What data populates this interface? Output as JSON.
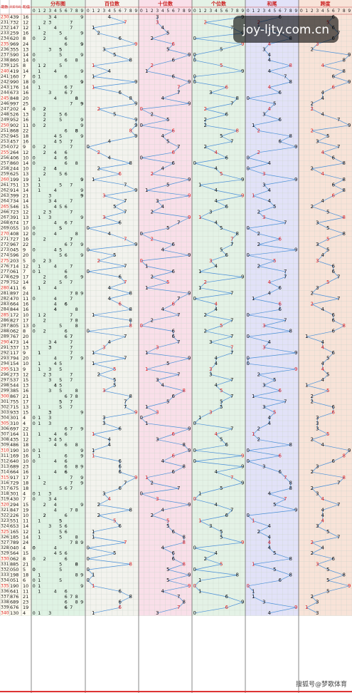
{
  "header": {
    "period": "期数",
    "number": "开奖号码",
    "sum": "和值",
    "sections": [
      "分布图",
      "百位数",
      "十位数",
      "个位数",
      "和尾",
      "跨度"
    ],
    "digits": [
      0,
      1,
      2,
      3,
      4,
      5,
      6,
      7,
      8,
      9
    ]
  },
  "watermark": "joy-ljty.com.cn",
  "footer": "搜狐号@梦歌体育",
  "rows": [
    [
      230,
      "439",
      16,
      4,
      3,
      9,
      6,
      6
    ],
    [
      231,
      "732",
      12,
      7,
      3,
      2,
      2,
      5
    ],
    [
      232,
      "147",
      12,
      1,
      4,
      7,
      2,
      6
    ],
    [
      233,
      "259",
      16,
      2,
      5,
      9,
      6,
      7
    ],
    [
      234,
      "620",
      8,
      6,
      2,
      0,
      8,
      6
    ],
    [
      235,
      "969",
      24,
      9,
      6,
      9,
      4,
      3
    ],
    [
      236,
      "355",
      13,
      3,
      5,
      5,
      3,
      2
    ],
    [
      237,
      "590",
      14,
      5,
      9,
      0,
      4,
      9
    ],
    [
      238,
      "860",
      14,
      8,
      6,
      0,
      4,
      8
    ],
    [
      239,
      "125",
      8,
      1,
      2,
      5,
      8,
      4
    ],
    [
      240,
      "419",
      14,
      4,
      1,
      9,
      4,
      8
    ],
    [
      241,
      "160",
      7,
      1,
      6,
      0,
      7,
      6
    ],
    [
      242,
      "990",
      18,
      9,
      9,
      0,
      8,
      9
    ],
    [
      243,
      "176",
      14,
      1,
      7,
      6,
      4,
      6
    ],
    [
      244,
      "673",
      16,
      6,
      7,
      3,
      6,
      4
    ],
    [
      245,
      "848",
      20,
      8,
      4,
      8,
      0,
      4
    ],
    [
      246,
      "997",
      25,
      9,
      9,
      7,
      5,
      2
    ],
    [
      247,
      "202",
      4,
      2,
      0,
      2,
      4,
      2
    ],
    [
      248,
      "526",
      13,
      5,
      2,
      6,
      3,
      4
    ],
    [
      249,
      "952",
      16,
      9,
      5,
      2,
      6,
      7
    ],
    [
      250,
      "902",
      11,
      9,
      0,
      2,
      1,
      9
    ],
    [
      251,
      "868",
      22,
      8,
      6,
      8,
      2,
      2
    ],
    [
      252,
      "945",
      18,
      9,
      4,
      5,
      8,
      5
    ],
    [
      253,
      "457",
      16,
      4,
      5,
      7,
      6,
      3
    ],
    [
      254,
      "072",
      9,
      0,
      7,
      2,
      9,
      7
    ],
    [
      255,
      "264",
      12,
      2,
      6,
      4,
      2,
      4
    ],
    [
      256,
      "406",
      10,
      4,
      0,
      6,
      0,
      6
    ],
    [
      257,
      "860",
      14,
      8,
      6,
      0,
      4,
      8
    ],
    [
      258,
      "244",
      10,
      2,
      4,
      4,
      0,
      2
    ],
    [
      259,
      "625",
      13,
      6,
      2,
      5,
      3,
      4
    ],
    [
      260,
      "199",
      19,
      1,
      9,
      9,
      9,
      8
    ],
    [
      261,
      "751",
      13,
      7,
      5,
      1,
      3,
      6
    ],
    [
      262,
      "914",
      14,
      9,
      1,
      4,
      4,
      8
    ],
    [
      263,
      "399",
      21,
      3,
      9,
      9,
      1,
      6
    ],
    [
      264,
      "734",
      14,
      7,
      3,
      4,
      4,
      4
    ],
    [
      265,
      "546",
      15,
      5,
      4,
      6,
      5,
      2
    ],
    [
      266,
      "723",
      12,
      7,
      2,
      3,
      2,
      5
    ],
    [
      267,
      "391",
      13,
      3,
      9,
      1,
      3,
      8
    ],
    [
      268,
      "674",
      17,
      6,
      7,
      4,
      7,
      3
    ],
    [
      269,
      "055",
      10,
      0,
      5,
      5,
      0,
      5
    ],
    [
      270,
      "408",
      12,
      4,
      0,
      8,
      2,
      8
    ],
    [
      271,
      "727",
      16,
      7,
      2,
      7,
      6,
      5
    ],
    [
      272,
      "967",
      22,
      9,
      6,
      7,
      2,
      3
    ],
    [
      273,
      "045",
      9,
      0,
      4,
      5,
      9,
      5
    ],
    [
      274,
      "596",
      20,
      5,
      9,
      6,
      0,
      4
    ],
    [
      275,
      "203",
      5,
      2,
      0,
      3,
      5,
      3
    ],
    [
      276,
      "714",
      12,
      7,
      1,
      4,
      2,
      6
    ],
    [
      277,
      "061",
      7,
      0,
      6,
      1,
      7,
      6
    ],
    [
      278,
      "629",
      17,
      6,
      2,
      9,
      7,
      7
    ],
    [
      279,
      "752",
      14,
      7,
      5,
      2,
      4,
      5
    ],
    [
      280,
      "411",
      6,
      4,
      1,
      1,
      6,
      3
    ],
    [
      281,
      "897",
      24,
      8,
      9,
      7,
      4,
      2
    ],
    [
      282,
      "470",
      11,
      4,
      7,
      0,
      1,
      7
    ],
    [
      283,
      "664",
      16,
      6,
      6,
      4,
      6,
      2
    ],
    [
      284,
      "844",
      16,
      8,
      4,
      4,
      6,
      4
    ],
    [
      285,
      "172",
      10,
      1,
      7,
      2,
      0,
      6
    ],
    [
      286,
      "827",
      17,
      8,
      2,
      7,
      7,
      6
    ],
    [
      287,
      "805",
      13,
      8,
      0,
      5,
      3,
      8
    ],
    [
      288,
      "062",
      8,
      0,
      6,
      2,
      8,
      6
    ],
    [
      289,
      "767",
      20,
      7,
      6,
      7,
      0,
      1
    ],
    [
      290,
      "473",
      14,
      4,
      7,
      3,
      4,
      4
    ],
    [
      291,
      "337",
      13,
      3,
      3,
      7,
      3,
      4
    ],
    [
      292,
      "117",
      9,
      1,
      1,
      7,
      9,
      6
    ],
    [
      293,
      "794",
      20,
      7,
      9,
      4,
      0,
      5
    ],
    [
      294,
      "154",
      10,
      1,
      5,
      4,
      0,
      4
    ],
    [
      295,
      "513",
      9,
      5,
      1,
      3,
      9,
      4
    ],
    [
      296,
      "273",
      12,
      2,
      7,
      3,
      2,
      5
    ],
    [
      297,
      "537",
      15,
      5,
      3,
      7,
      5,
      4
    ],
    [
      298,
      "544",
      13,
      5,
      4,
      4,
      3,
      1
    ],
    [
      299,
      "385",
      16,
      3,
      8,
      5,
      6,
      5
    ],
    [
      300,
      "867",
      21,
      8,
      6,
      7,
      1,
      2
    ],
    [
      301,
      "755",
      17,
      7,
      5,
      5,
      7,
      2
    ],
    [
      302,
      "715",
      13,
      7,
      1,
      5,
      3,
      6
    ],
    [
      303,
      "933",
      15,
      9,
      3,
      3,
      5,
      6
    ],
    [
      304,
      "301",
      4,
      3,
      0,
      1,
      4,
      3
    ],
    [
      305,
      "310",
      4,
      3,
      1,
      0,
      4,
      3
    ],
    [
      306,
      "697",
      22,
      6,
      9,
      7,
      2,
      3
    ],
    [
      307,
      "164",
      11,
      1,
      6,
      4,
      1,
      5
    ],
    [
      308,
      "435",
      12,
      4,
      3,
      5,
      2,
      2
    ],
    [
      309,
      "486",
      18,
      4,
      8,
      6,
      8,
      4
    ],
    [
      310,
      "190",
      10,
      1,
      9,
      0,
      0,
      9
    ],
    [
      311,
      "169",
      16,
      1,
      6,
      9,
      6,
      8
    ],
    [
      312,
      "640",
      10,
      6,
      4,
      0,
      0,
      6
    ],
    [
      313,
      "689",
      23,
      6,
      8,
      9,
      3,
      3
    ],
    [
      314,
      "664",
      16,
      6,
      6,
      4,
      6,
      2
    ],
    [
      315,
      "917",
      17,
      9,
      1,
      7,
      7,
      8
    ],
    [
      316,
      "729",
      18,
      7,
      2,
      9,
      8,
      7
    ],
    [
      317,
      "675",
      18,
      6,
      7,
      5,
      8,
      2
    ],
    [
      318,
      "301",
      4,
      3,
      0,
      1,
      4,
      3
    ],
    [
      319,
      "430",
      7,
      4,
      3,
      0,
      7,
      4
    ],
    [
      320,
      "294",
      15,
      2,
      9,
      4,
      5,
      7
    ],
    [
      321,
      "847",
      19,
      8,
      4,
      7,
      9,
      4
    ],
    [
      322,
      "226",
      10,
      2,
      2,
      6,
      0,
      4
    ],
    [
      323,
      "551",
      11,
      5,
      5,
      1,
      1,
      4
    ],
    [
      324,
      "653",
      14,
      6,
      5,
      3,
      4,
      3
    ],
    [
      325,
      "165",
      12,
      1,
      6,
      5,
      2,
      5
    ],
    [
      326,
      "185",
      14,
      1,
      8,
      5,
      4,
      7
    ],
    [
      327,
      "789",
      24,
      7,
      8,
      9,
      4,
      2
    ],
    [
      328,
      "040",
      4,
      0,
      4,
      0,
      4,
      4
    ],
    [
      329,
      "564",
      15,
      5,
      6,
      4,
      5,
      2
    ],
    [
      330,
      "062",
      8,
      0,
      6,
      2,
      8,
      6
    ],
    [
      331,
      "885",
      21,
      8,
      8,
      5,
      1,
      3
    ],
    [
      332,
      "050",
      5,
      0,
      5,
      0,
      5,
      5
    ],
    [
      333,
      "198",
      18,
      1,
      9,
      8,
      8,
      8
    ],
    [
      334,
      "051",
      6,
      0,
      5,
      1,
      6,
      5
    ],
    [
      335,
      "190",
      10,
      1,
      9,
      0,
      0,
      9
    ],
    [
      336,
      "641",
      11,
      6,
      4,
      1,
      1,
      5
    ],
    [
      337,
      "876",
      21,
      8,
      7,
      6,
      1,
      2
    ],
    [
      338,
      "689",
      23,
      6,
      8,
      9,
      3,
      3
    ],
    [
      339,
      "676",
      19,
      6,
      7,
      6,
      9,
      1
    ],
    [
      340,
      "130",
      4,
      1,
      3,
      0,
      4,
      3
    ]
  ]
}
